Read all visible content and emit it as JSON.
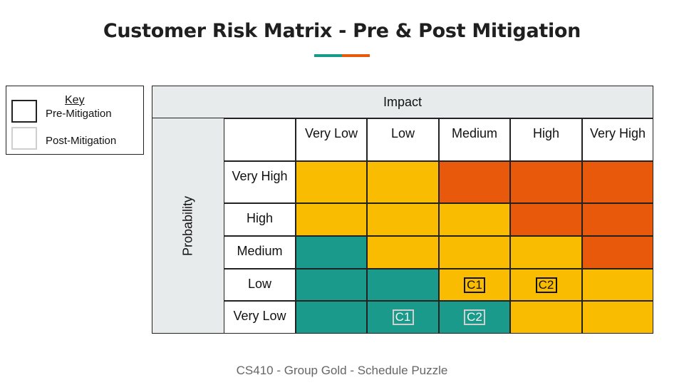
{
  "title": "Customer Risk Matrix - Pre & Post Mitigation",
  "accent_colors": [
    "#1a9a8a",
    "#e8590c"
  ],
  "key": {
    "title": "Key",
    "pre_label": "Pre-Mitigation",
    "post_label": "Post-Mitigation",
    "pre_border_color": "#222222",
    "post_border_color": "#cfcfcf"
  },
  "matrix": {
    "impact_label": "Impact",
    "probability_label": "Probability",
    "impact_levels": [
      "Very Low",
      "Low",
      "Medium",
      "High",
      "Very High"
    ],
    "probability_levels": [
      "Very High",
      "High",
      "Medium",
      "Low",
      "Very Low"
    ],
    "level_colors": {
      "low": "#1a9a8a",
      "medium": "#f9bc00",
      "high": "#e8590c"
    },
    "cells": [
      [
        "medium",
        "medium",
        "high",
        "high",
        "high"
      ],
      [
        "medium",
        "medium",
        "medium",
        "high",
        "high"
      ],
      [
        "low",
        "medium",
        "medium",
        "medium",
        "high"
      ],
      [
        "low",
        "low",
        "medium",
        "medium",
        "medium"
      ],
      [
        "low",
        "low",
        "low",
        "medium",
        "medium"
      ]
    ],
    "markers": [
      {
        "label": "C1",
        "type": "pre",
        "probability": "Low",
        "impact": "Medium"
      },
      {
        "label": "C2",
        "type": "pre",
        "probability": "Low",
        "impact": "High"
      },
      {
        "label": "C1",
        "type": "post",
        "probability": "Very Low",
        "impact": "Low"
      },
      {
        "label": "C2",
        "type": "post",
        "probability": "Very Low",
        "impact": "Medium"
      }
    ]
  },
  "footer": "CS410 - Group Gold - Schedule Puzzle"
}
